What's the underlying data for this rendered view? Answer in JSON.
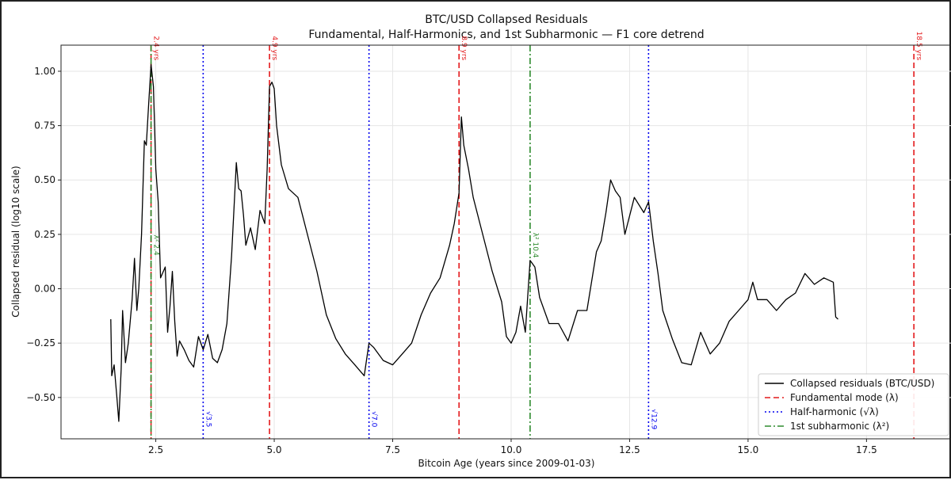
{
  "chart_data": {
    "type": "line",
    "title": "BTC/USD Collapsed Residuals",
    "subtitle": "Fundamental, Half-Harmonics, and 1st Subharmonic — F1 core detrend",
    "xlabel": "Bitcoin Age (years since 2009-01-03)",
    "ylabel": "Collapsed residual (log10 scale)",
    "xlim": [
      0.5,
      19.3
    ],
    "ylim": [
      -0.69,
      1.12
    ],
    "xticks": [
      2.5,
      5.0,
      7.5,
      10.0,
      12.5,
      15.0,
      17.5
    ],
    "xtick_labels": [
      "2.5",
      "5.0",
      "7.5",
      "10.0",
      "12.5",
      "15.0",
      "17.5"
    ],
    "yticks": [
      -0.5,
      -0.25,
      0.0,
      0.25,
      0.5,
      0.75,
      1.0
    ],
    "ytick_labels": [
      "−0.50",
      "−0.25",
      "0.00",
      "0.25",
      "0.50",
      "0.75",
      "1.00"
    ],
    "grid": true,
    "legend_position": "bottom-right",
    "series": [
      {
        "name": "Collapsed residuals (BTC/USD)",
        "color": "#000000",
        "x": [
          1.55,
          1.57,
          1.62,
          1.68,
          1.72,
          1.77,
          1.8,
          1.86,
          1.92,
          2.0,
          2.05,
          2.1,
          2.14,
          2.2,
          2.26,
          2.3,
          2.35,
          2.4,
          2.45,
          2.5,
          2.55,
          2.6,
          2.7,
          2.75,
          2.8,
          2.85,
          2.9,
          2.95,
          3.0,
          3.1,
          3.2,
          3.3,
          3.4,
          3.5,
          3.6,
          3.7,
          3.8,
          3.9,
          4.0,
          4.1,
          4.2,
          4.25,
          4.3,
          4.35,
          4.4,
          4.5,
          4.6,
          4.7,
          4.8,
          4.85,
          4.9,
          4.95,
          5.0,
          5.05,
          5.15,
          5.3,
          5.5,
          5.7,
          5.9,
          6.1,
          6.3,
          6.5,
          6.7,
          6.9,
          7.0,
          7.1,
          7.3,
          7.5,
          7.7,
          7.9,
          8.1,
          8.3,
          8.5,
          8.7,
          8.8,
          8.9,
          8.95,
          9.0,
          9.1,
          9.2,
          9.4,
          9.6,
          9.8,
          9.9,
          10.0,
          10.1,
          10.2,
          10.3,
          10.4,
          10.5,
          10.6,
          10.8,
          11.0,
          11.2,
          11.4,
          11.6,
          11.8,
          11.9,
          12.0,
          12.1,
          12.2,
          12.3,
          12.4,
          12.6,
          12.8,
          12.9,
          13.0,
          13.1,
          13.2,
          13.4,
          13.6,
          13.8,
          14.0,
          14.2,
          14.4,
          14.6,
          14.8,
          15.0,
          15.1,
          15.2,
          15.4,
          15.6,
          15.8,
          16.0,
          16.2,
          16.4,
          16.6,
          16.8,
          16.85,
          16.9
        ],
        "y": [
          -0.14,
          -0.4,
          -0.35,
          -0.5,
          -0.61,
          -0.37,
          -0.1,
          -0.34,
          -0.25,
          -0.05,
          0.14,
          -0.1,
          0.0,
          0.25,
          0.68,
          0.66,
          0.85,
          1.03,
          0.93,
          0.55,
          0.4,
          0.05,
          0.1,
          -0.2,
          -0.08,
          0.08,
          -0.15,
          -0.31,
          -0.24,
          -0.28,
          -0.33,
          -0.36,
          -0.22,
          -0.28,
          -0.21,
          -0.32,
          -0.34,
          -0.28,
          -0.16,
          0.15,
          0.58,
          0.46,
          0.45,
          0.34,
          0.2,
          0.28,
          0.18,
          0.36,
          0.3,
          0.55,
          0.93,
          0.95,
          0.92,
          0.75,
          0.57,
          0.46,
          0.42,
          0.25,
          0.08,
          -0.12,
          -0.23,
          -0.3,
          -0.35,
          -0.4,
          -0.25,
          -0.27,
          -0.33,
          -0.35,
          -0.3,
          -0.25,
          -0.12,
          -0.02,
          0.05,
          0.2,
          0.3,
          0.44,
          0.79,
          0.66,
          0.55,
          0.42,
          0.25,
          0.08,
          -0.06,
          -0.22,
          -0.25,
          -0.2,
          -0.08,
          -0.2,
          0.13,
          0.1,
          -0.04,
          -0.16,
          -0.16,
          -0.24,
          -0.1,
          -0.1,
          0.17,
          0.22,
          0.35,
          0.5,
          0.45,
          0.42,
          0.25,
          0.42,
          0.35,
          0.4,
          0.22,
          0.07,
          -0.1,
          -0.23,
          -0.34,
          -0.35,
          -0.2,
          -0.3,
          -0.25,
          -0.15,
          -0.1,
          -0.05,
          0.03,
          -0.05,
          -0.05,
          -0.1,
          -0.05,
          -0.02,
          0.07,
          0.02,
          0.05,
          0.03,
          -0.13,
          -0.14
        ]
      }
    ],
    "vlines": [
      {
        "x": 2.4,
        "kind": "fundamental",
        "label": "2.4 yrs"
      },
      {
        "x": 4.9,
        "kind": "fundamental",
        "label": "4.9 yrs"
      },
      {
        "x": 8.9,
        "kind": "fundamental",
        "label": "8.9 yrs"
      },
      {
        "x": 18.5,
        "kind": "fundamental",
        "label": "18.5 yrs"
      },
      {
        "x": 3.5,
        "kind": "half",
        "label": "√3.5"
      },
      {
        "x": 7.0,
        "kind": "half",
        "label": "√7.0"
      },
      {
        "x": 12.9,
        "kind": "half",
        "label": "√12.9"
      },
      {
        "x": 2.4,
        "kind": "sub",
        "label": "λ² 2.4"
      },
      {
        "x": 10.4,
        "kind": "sub",
        "label": "λ² 10.4"
      }
    ],
    "styles": {
      "fundamental": {
        "color": "#e41a1c"
      },
      "half": {
        "color": "#0000ee"
      },
      "sub": {
        "color": "#2e8b2e"
      }
    },
    "legend": [
      {
        "label": "Collapsed residuals (BTC/USD)",
        "style": "solid",
        "color": "#000000"
      },
      {
        "label": "Fundamental mode (λ)",
        "style": "dashed",
        "color": "#e41a1c"
      },
      {
        "label": "Half-harmonic (√λ)",
        "style": "dotted",
        "color": "#0000ee"
      },
      {
        "label": "1st subharmonic (λ²)",
        "style": "dashdot",
        "color": "#2e8b2e"
      }
    ]
  }
}
